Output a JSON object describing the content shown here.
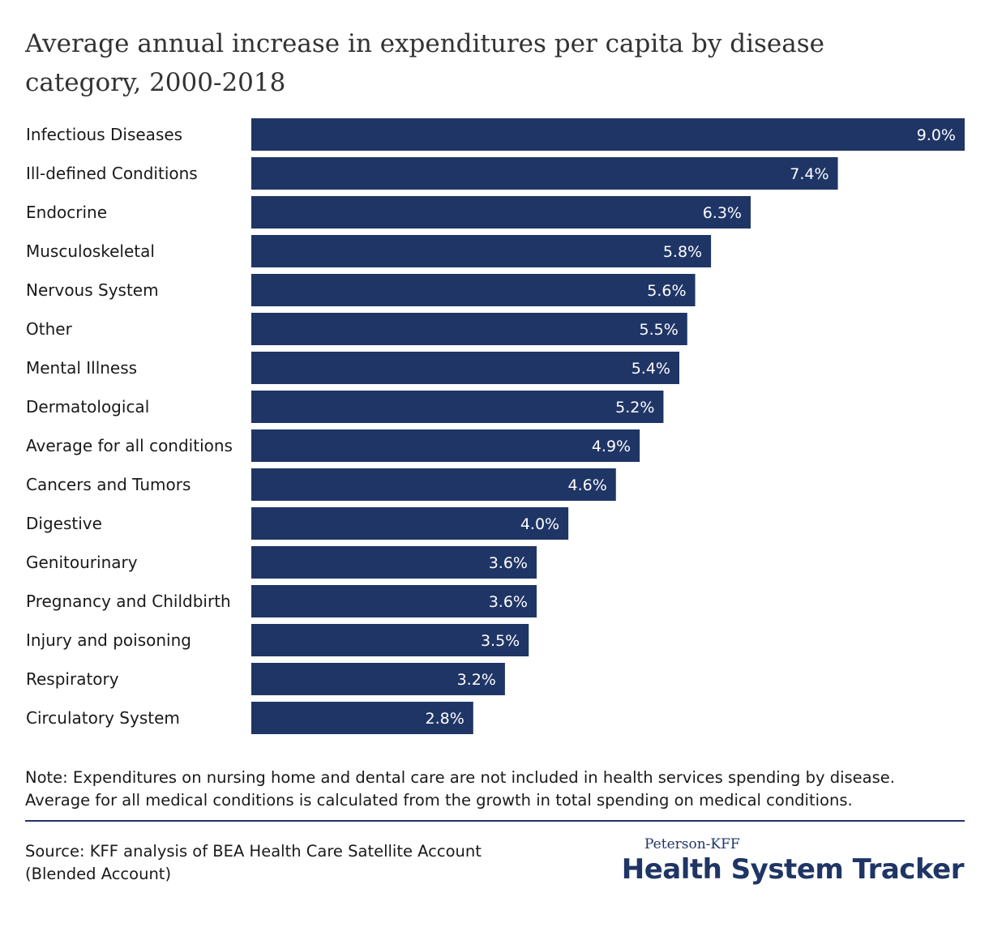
{
  "chart_data": {
    "type": "bar",
    "orientation": "horizontal",
    "title": "Average annual increase in expenditures per capita by disease category, 2000-2018",
    "title_lines": [
      "Average annual increase in expenditures per capita by disease",
      "category, 2000-2018"
    ],
    "categories": [
      "Infectious Diseases",
      "Ill-defined Conditions",
      "Endocrine",
      "Musculoskeletal",
      "Nervous System",
      "Other",
      "Mental Illness",
      "Dermatological",
      "Average for all conditions",
      "Cancers and Tumors",
      "Digestive",
      "Genitourinary",
      "Pregnancy and Childbirth",
      "Injury and poisoning",
      "Respiratory",
      "Circulatory System"
    ],
    "values": [
      9.0,
      7.4,
      6.3,
      5.8,
      5.6,
      5.5,
      5.4,
      5.2,
      4.9,
      4.6,
      4.0,
      3.6,
      3.6,
      3.5,
      3.2,
      2.8
    ],
    "value_labels": [
      "9.0%",
      "7.4%",
      "6.3%",
      "5.8%",
      "5.6%",
      "5.5%",
      "5.4%",
      "5.2%",
      "4.9%",
      "4.6%",
      "4.0%",
      "3.6%",
      "3.6%",
      "3.5%",
      "3.2%",
      "2.8%"
    ],
    "xlim": [
      0,
      9.0
    ],
    "grid": false,
    "bar_color": "#1f3566"
  },
  "note_lines": [
    "Note: Expenditures on nursing home and dental care are not included in health services spending by disease.",
    "Average for all medical conditions is calculated from the growth in total spending on medical conditions."
  ],
  "source_lines": [
    "Source: KFF analysis of BEA Health Care Satellite Account",
    "(Blended Account)"
  ],
  "brand": {
    "top": "Peterson-KFF",
    "main": "Health System Tracker",
    "color": "#1f3566"
  }
}
